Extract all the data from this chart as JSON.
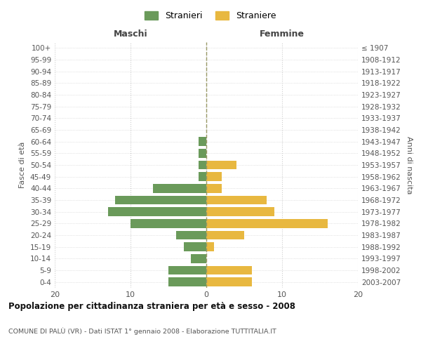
{
  "age_groups": [
    "0-4",
    "5-9",
    "10-14",
    "15-19",
    "20-24",
    "25-29",
    "30-34",
    "35-39",
    "40-44",
    "45-49",
    "50-54",
    "55-59",
    "60-64",
    "65-69",
    "70-74",
    "75-79",
    "80-84",
    "85-89",
    "90-94",
    "95-99",
    "100+"
  ],
  "birth_years": [
    "2003-2007",
    "1998-2002",
    "1993-1997",
    "1988-1992",
    "1983-1987",
    "1978-1982",
    "1973-1977",
    "1968-1972",
    "1963-1967",
    "1958-1962",
    "1953-1957",
    "1948-1952",
    "1943-1947",
    "1938-1942",
    "1933-1937",
    "1928-1932",
    "1923-1927",
    "1918-1922",
    "1913-1917",
    "1908-1912",
    "≤ 1907"
  ],
  "males": [
    5,
    5,
    2,
    3,
    4,
    10,
    13,
    12,
    7,
    1,
    1,
    1,
    1,
    0,
    0,
    0,
    0,
    0,
    0,
    0,
    0
  ],
  "females": [
    6,
    6,
    0,
    1,
    5,
    16,
    9,
    8,
    2,
    2,
    4,
    0,
    0,
    0,
    0,
    0,
    0,
    0,
    0,
    0,
    0
  ],
  "male_color": "#6a9a5a",
  "female_color": "#e8b840",
  "xlim": 20,
  "title": "Popolazione per cittadinanza straniera per età e sesso - 2008",
  "subtitle": "COMUNE DI PALÙ (VR) - Dati ISTAT 1° gennaio 2008 - Elaborazione TUTTITALIA.IT",
  "legend_male": "Stranieri",
  "legend_female": "Straniere",
  "xlabel_left": "Maschi",
  "xlabel_right": "Femmine",
  "ylabel_left": "Fasce di età",
  "ylabel_right": "Anni di nascita",
  "bg_color": "#ffffff",
  "grid_color": "#cccccc"
}
